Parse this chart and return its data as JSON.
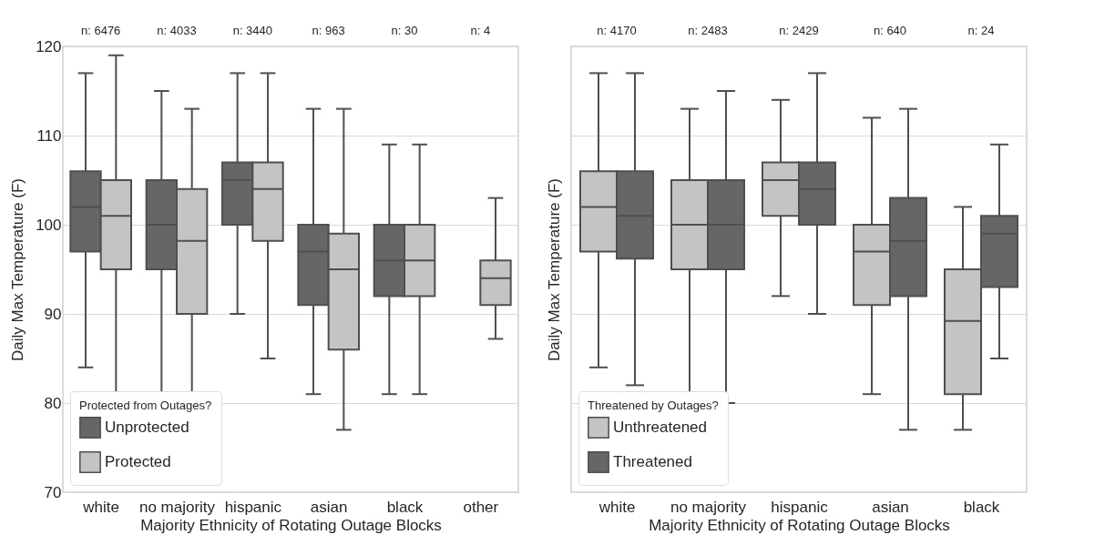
{
  "chart_data": [
    {
      "type": "box",
      "xlabel": "Majority Ethnicity of Rotating Outage Blocks",
      "ylabel": "Daily Max Temperature (F)",
      "legend_title": "Protected from Outages?",
      "legend": "bottom left",
      "grid": "y",
      "ylim": [
        70,
        120
      ],
      "yticks": [
        70,
        80,
        90,
        100,
        110,
        120
      ],
      "categories": [
        "white",
        "no majority",
        "hispanic",
        "asian",
        "black",
        "other"
      ],
      "annotations": [
        "n: 6476",
        "n: 4033",
        "n: 3440",
        "n: 963",
        "n: 30",
        "n: 4"
      ],
      "series": [
        {
          "name": "Unprotected",
          "color": "#666666",
          "boxes": [
            {
              "low": 84,
              "q1": 97,
              "median": 102,
              "q3": 106,
              "high": 117
            },
            {
              "low": 80,
              "q1": 95,
              "median": 100,
              "q3": 105,
              "high": 115
            },
            {
              "low": 90,
              "q1": 100,
              "median": 105,
              "q3": 107,
              "high": 117
            },
            {
              "low": 81,
              "q1": 91,
              "median": 97,
              "q3": 100,
              "high": 113
            },
            {
              "low": 81,
              "q1": 92,
              "median": 96,
              "q3": 100,
              "high": 109
            },
            null
          ]
        },
        {
          "name": "Protected",
          "color": "#c4c4c4",
          "boxes": [
            {
              "low": 80,
              "q1": 95,
              "median": 101,
              "q3": 105,
              "high": 119
            },
            {
              "low": 77,
              "q1": 90,
              "median": 98.2,
              "q3": 104,
              "high": 113
            },
            {
              "low": 85,
              "q1": 98.2,
              "median": 104,
              "q3": 107,
              "high": 117
            },
            {
              "low": 77,
              "q1": 86,
              "median": 95,
              "q3": 99,
              "high": 113
            },
            {
              "low": 81,
              "q1": 92,
              "median": 96,
              "q3": 100,
              "high": 109
            },
            {
              "low": 87.2,
              "q1": 91,
              "median": 94,
              "q3": 96,
              "high": 103
            }
          ]
        }
      ]
    },
    {
      "type": "box",
      "xlabel": "Majority Ethnicity of Rotating Outage Blocks",
      "ylabel": "Daily Max Temperature (F)",
      "legend_title": "Threatened by Outages?",
      "legend": "bottom left",
      "grid": "y",
      "tick_labels": "x",
      "ylim": [
        70,
        120
      ],
      "yticks": [
        70,
        80,
        90,
        100,
        110,
        120
      ],
      "categories": [
        "white",
        "no majority",
        "hispanic",
        "asian",
        "black"
      ],
      "annotations": [
        "n: 4170",
        "n: 2483",
        "n: 2429",
        "n: 640",
        "n: 24"
      ],
      "series": [
        {
          "name": "Unthreatened",
          "color": "#c4c4c4",
          "boxes": [
            {
              "low": 84,
              "q1": 97,
              "median": 102,
              "q3": 106,
              "high": 117
            },
            {
              "low": 80,
              "q1": 95,
              "median": 100,
              "q3": 105,
              "high": 113
            },
            {
              "low": 92,
              "q1": 101,
              "median": 105,
              "q3": 107,
              "high": 114
            },
            {
              "low": 81,
              "q1": 91,
              "median": 97,
              "q3": 100,
              "high": 112
            },
            {
              "low": 77,
              "q1": 81,
              "median": 89.2,
              "q3": 95,
              "high": 102
            }
          ]
        },
        {
          "name": "Threatened",
          "color": "#666666",
          "boxes": [
            {
              "low": 82,
              "q1": 96.2,
              "median": 101,
              "q3": 106,
              "high": 117
            },
            {
              "low": 80,
              "q1": 95,
              "median": 100,
              "q3": 105,
              "high": 115
            },
            {
              "low": 90,
              "q1": 100,
              "median": 104,
              "q3": 107,
              "high": 117
            },
            {
              "low": 77,
              "q1": 92,
              "median": 98.2,
              "q3": 103,
              "high": 113
            },
            {
              "low": 85,
              "q1": 93,
              "median": 99,
              "q3": 101,
              "high": 109
            }
          ]
        }
      ]
    }
  ]
}
